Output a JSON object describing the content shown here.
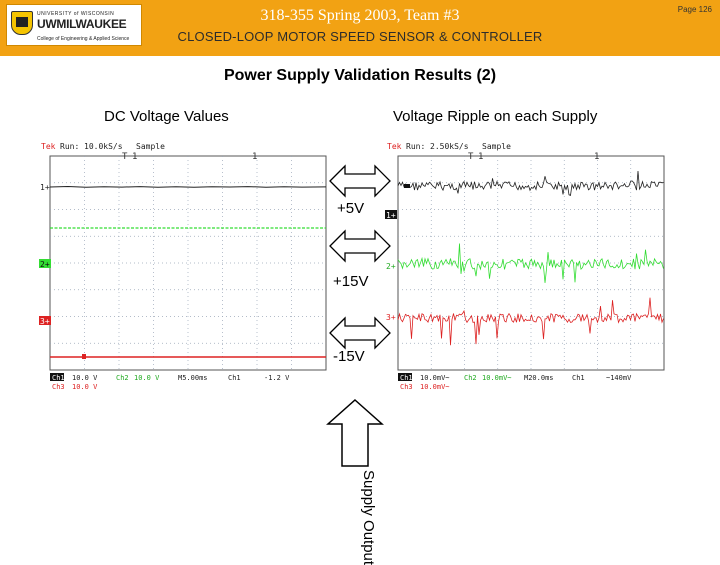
{
  "header": {
    "title": "318-355 Spring 2003, Team #3",
    "subtitle": "CLOSED-LOOP MOTOR SPEED SENSOR & CONTROLLER",
    "page_number": "Page 126",
    "logo": {
      "line1": "UNIVERSITY of WISCONSIN",
      "line2": "UWMILWAUKEE",
      "line3": "College of Engineering & Applied Science"
    }
  },
  "main": {
    "title": "Power Supply Validation Results (2)",
    "left_label": "DC Voltage Values",
    "right_label": "Voltage Ripple on each Supply",
    "arrow_labels": [
      "+5V",
      "+15V",
      "-15V"
    ],
    "supply_output_label": "Supply Output"
  },
  "scope_left": {
    "status": [
      "Tek",
      "Run:",
      "10.0kS/s",
      "Sample"
    ],
    "markers": [
      "1+",
      "2+",
      "3+"
    ],
    "footer_line1": [
      "Ch1",
      "10.0 V",
      "Ch2",
      "10.0 V",
      "M5.00ms",
      "Ch1",
      "-1.2 V"
    ],
    "footer_line2": [
      "Ch3",
      "10.0 V"
    ]
  },
  "scope_right": {
    "status": [
      "Tek",
      "Run:",
      "2.50kS/s",
      "Sample"
    ],
    "markers": [
      "1+",
      "2+",
      "3+"
    ],
    "footer_line1": [
      "Ch1",
      "10.0mV~",
      "Ch2",
      "10.0mV~",
      "M20.0ms",
      "Ch1",
      "~140mV"
    ],
    "footer_line2": [
      "Ch3",
      "10.0mV~"
    ]
  },
  "colors": {
    "banner": "#f2a213",
    "ch1_trace": "#222222",
    "ch2_trace": "#33dd33",
    "ch3_trace": "#dd2222",
    "tek_red": "#dd2222",
    "grid": "#9aa6b8"
  }
}
